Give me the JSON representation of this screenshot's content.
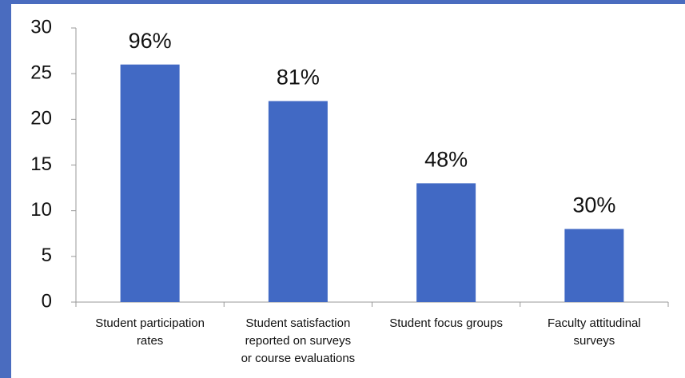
{
  "chart_data": {
    "type": "bar",
    "categories": [
      [
        "Student participation",
        "rates"
      ],
      [
        "Student satisfaction",
        "reported on surveys",
        "or course evaluations"
      ],
      [
        "Student focus groups"
      ],
      [
        "Faculty attitudinal",
        "surveys"
      ]
    ],
    "values": [
      26,
      22,
      13,
      8
    ],
    "annotations": [
      "96%",
      "81%",
      "48%",
      "30%"
    ],
    "color": "#4169c4",
    "ylim": [
      0,
      30
    ],
    "yticks": [
      0,
      5,
      10,
      15,
      20,
      25,
      30
    ],
    "grid": false
  }
}
